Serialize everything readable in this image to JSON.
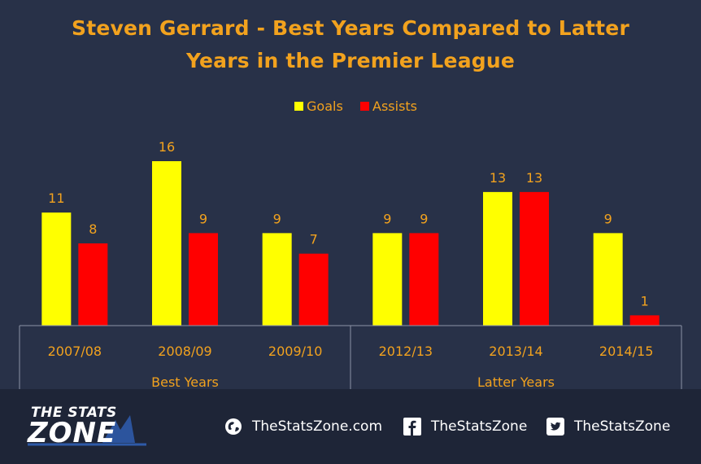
{
  "title_line1": "Steven Gerrard - Best Years Compared to Latter",
  "title_line2": "Years in the Premier League",
  "chart_data": {
    "type": "bar",
    "categories": [
      "2007/08",
      "2008/09",
      "2009/10",
      "2012/13",
      "2013/14",
      "2014/15"
    ],
    "groups": [
      {
        "label": "Best Years",
        "categories": [
          "2007/08",
          "2008/09",
          "2009/10"
        ]
      },
      {
        "label": "Latter Years",
        "categories": [
          "2012/13",
          "2013/14",
          "2014/15"
        ]
      }
    ],
    "series": [
      {
        "name": "Goals",
        "values": [
          11,
          16,
          9,
          9,
          13,
          9
        ],
        "color": "#FFFF00"
      },
      {
        "name": "Assists",
        "values": [
          8,
          9,
          7,
          9,
          13,
          1
        ],
        "color": "#FF0000"
      }
    ],
    "ylim": [
      0,
      16
    ],
    "data_labels": true,
    "legend_position": "top",
    "label_color": "#F2A21E",
    "axis_color": "#8C93A6",
    "background": "#283148"
  },
  "footer": {
    "logo_top": "THE STATS",
    "logo_main": "ZONE",
    "website": "TheStatsZone.com",
    "facebook": "TheStatsZone",
    "twitter": "TheStatsZone",
    "icons": [
      "globe-icon",
      "facebook-icon",
      "twitter-icon"
    ]
  }
}
